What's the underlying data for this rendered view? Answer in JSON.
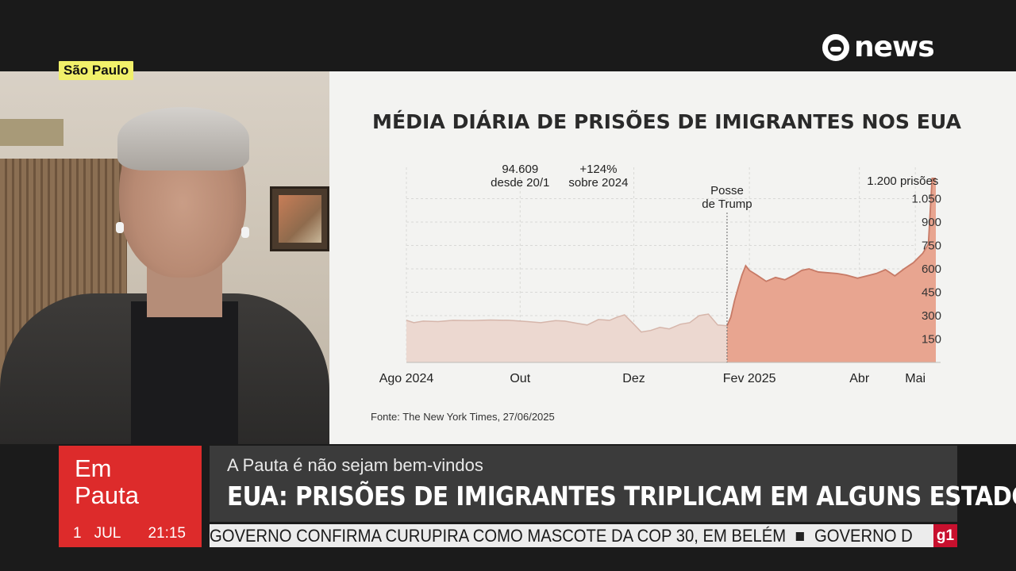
{
  "channel": {
    "logo_text": "news"
  },
  "video": {
    "location": "São Paulo"
  },
  "chart_data": {
    "type": "area",
    "title": "MÉDIA DIÁRIA DE PRISÕES DE IMIGRANTES NOS EUA",
    "source": "Fonte: The New York Times, 27/06/2025",
    "x_tick_labels": [
      "Ago 2024",
      "Out",
      "Dez",
      "Fev 2025",
      "Abr",
      "Mai"
    ],
    "x_ticks": [
      "2024-08-01",
      "2024-10-01",
      "2024-12-01",
      "2025-02-01",
      "2025-04-01",
      "2025-05-01"
    ],
    "y_ticks": [
      150,
      300,
      450,
      600,
      750,
      900,
      1050
    ],
    "y_tick_labels": [
      "150",
      "300",
      "450",
      "600",
      "750",
      "900",
      "1.050"
    ],
    "ylim": [
      0,
      1200
    ],
    "xlim": [
      "2024-08-01",
      "2025-05-12"
    ],
    "grid": true,
    "colors": {
      "before": "#ecd8d0",
      "after": "#e8a590",
      "after_line": "#c77a66",
      "before_line": "#d6b6ab"
    },
    "series": [
      {
        "name": "",
        "x": [
          "2024-08-01",
          "2024-08-05",
          "2024-08-10",
          "2024-08-18",
          "2024-08-26",
          "2024-09-05",
          "2024-09-15",
          "2024-09-25",
          "2024-10-05",
          "2024-10-12",
          "2024-10-20",
          "2024-10-25",
          "2024-11-01",
          "2024-11-06",
          "2024-11-12",
          "2024-11-18",
          "2024-11-22",
          "2024-11-26",
          "2024-12-01",
          "2024-12-05",
          "2024-12-10",
          "2024-12-15",
          "2024-12-20",
          "2024-12-26",
          "2024-12-31",
          "2025-01-05",
          "2025-01-10",
          "2025-01-15",
          "2025-01-20",
          "2025-01-22",
          "2025-01-24",
          "2025-01-26",
          "2025-01-28",
          "2025-01-30",
          "2025-02-01",
          "2025-02-05",
          "2025-02-10",
          "2025-02-15",
          "2025-02-20",
          "2025-02-25",
          "2025-03-01",
          "2025-03-05",
          "2025-03-10",
          "2025-03-15",
          "2025-03-20",
          "2025-03-25",
          "2025-03-31",
          "2025-04-05",
          "2025-04-10",
          "2025-04-15",
          "2025-04-20",
          "2025-04-25",
          "2025-04-30",
          "2025-05-05",
          "2025-05-08",
          "2025-05-10",
          "2025-05-12"
        ],
        "y": [
          270,
          255,
          265,
          262,
          270,
          268,
          272,
          270,
          262,
          255,
          268,
          265,
          250,
          240,
          275,
          270,
          290,
          305,
          245,
          195,
          205,
          225,
          215,
          245,
          255,
          300,
          310,
          240,
          235,
          290,
          395,
          480,
          560,
          620,
          590,
          560,
          520,
          545,
          530,
          560,
          590,
          600,
          580,
          575,
          570,
          560,
          540,
          555,
          570,
          595,
          555,
          600,
          640,
          700,
          760,
          1180,
          1180
        ]
      }
    ],
    "annotations": [
      {
        "x": "2025-01-20",
        "text": "Posse de Trump",
        "lines": [
          "Posse",
          "de Trump"
        ]
      },
      {
        "x": "2024-10-01",
        "text": "94.609 desde 20/1",
        "lines": [
          "94.609",
          "desde 20/1"
        ]
      },
      {
        "x": "2024-11-12",
        "text": "+124% sobre 2024",
        "lines": [
          "+124%",
          "sobre 2024"
        ]
      },
      {
        "x": "2025-05-10",
        "text": "1.200 prisões",
        "lines": [
          "1.200 prisões"
        ]
      }
    ]
  },
  "lower_third": {
    "program_line1": "Em",
    "program_line2": "Pauta",
    "date_day": "1",
    "date_month": "JUL",
    "time": "21:15",
    "kicker": "A Pauta é não sejam bem-vindos",
    "headline": "EUA: PRISÕES DE IMIGRANTES TRIPLICAM EM ALGUNS ESTADOS",
    "ticker_item": "GOVERNO CONFIRMA CURUPIRA COMO MASCOTE DA COP 30, EM BELÉM",
    "ticker_next": "GOVERNO D",
    "ticker_badge": "g1"
  }
}
